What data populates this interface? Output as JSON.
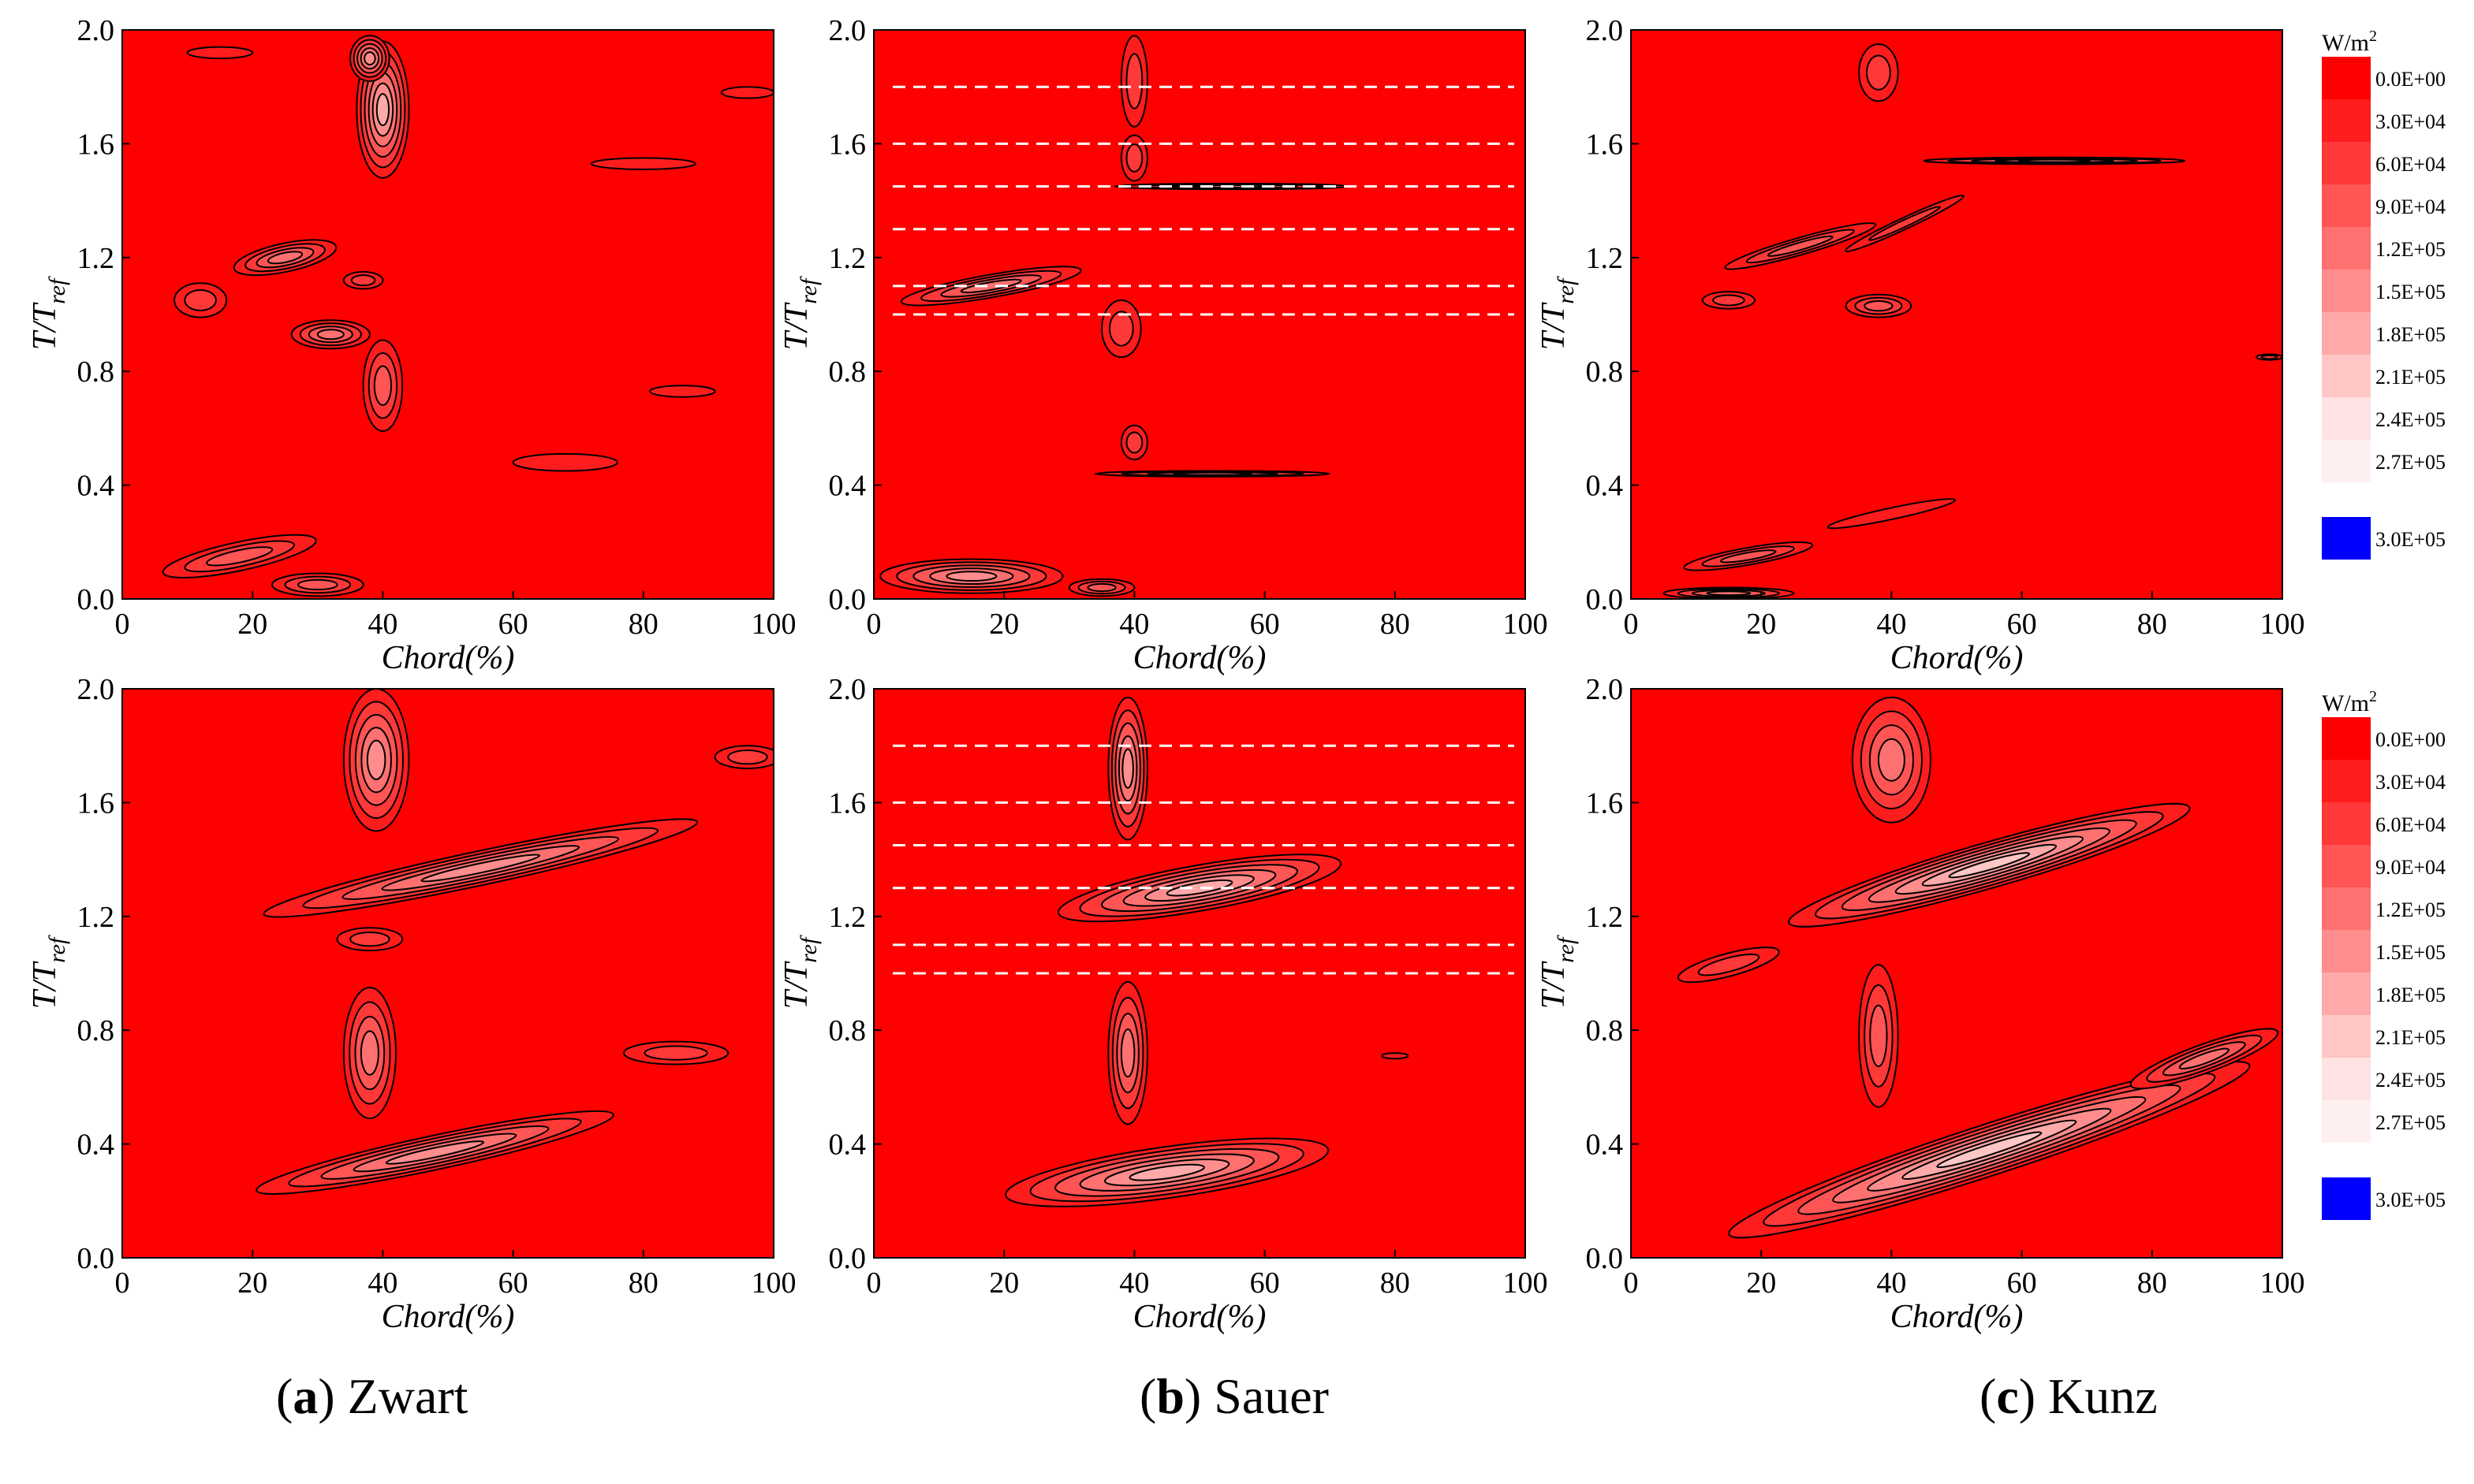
{
  "colors": {
    "background": "#ff0000",
    "contour_line": "#000000",
    "guide_line": "#ffffff",
    "cap_color": "#0000ff",
    "levels": [
      "#ff0000",
      "#ff1c1c",
      "#ff3838",
      "#ff5555",
      "#ff7171",
      "#ff8d8d",
      "#ffaaaa",
      "#ffc6c6",
      "#ffe2e2",
      "#fff0f0"
    ]
  },
  "captions": [
    {
      "letter": "a",
      "name": "Zwart"
    },
    {
      "letter": "b",
      "name": "Sauer"
    },
    {
      "letter": "c",
      "name": "Kunz"
    }
  ],
  "colorbar": {
    "unit": "W/m",
    "unit_sup": "2",
    "labels": [
      "0.0E+00",
      "3.0E+04",
      "6.0E+04",
      "9.0E+04",
      "1.2E+05",
      "1.5E+05",
      "1.8E+05",
      "2.1E+05",
      "2.4E+05",
      "2.7E+05",
      "3.0E+05"
    ]
  },
  "chart_data": [
    {
      "id": "a-top",
      "type": "heatmap",
      "model": "Zwart",
      "xlabel": "Chord(%)",
      "ylabel": "T/T",
      "ylabel_sub": "ref",
      "xlim": [
        0,
        100
      ],
      "ylim": [
        0.0,
        2.0
      ],
      "x_ticks": [
        "0",
        "20",
        "40",
        "60",
        "80",
        "100"
      ],
      "y_ticks": [
        "0.0",
        "0.4",
        "0.8",
        "1.2",
        "1.6",
        "2.0"
      ],
      "guide_lines": [],
      "blobs": [
        {
          "x": 40,
          "y": 1.72,
          "rx": 4,
          "ry": 0.24,
          "rot": 0,
          "peak": 6
        },
        {
          "x": 38,
          "y": 1.9,
          "rx": 3,
          "ry": 0.08,
          "rot": 0,
          "peak": 5
        },
        {
          "x": 25,
          "y": 1.2,
          "rx": 8,
          "ry": 0.05,
          "rot": -12,
          "peak": 4
        },
        {
          "x": 32,
          "y": 0.93,
          "rx": 6,
          "ry": 0.05,
          "rot": 0,
          "peak": 4
        },
        {
          "x": 40,
          "y": 0.75,
          "rx": 3,
          "ry": 0.16,
          "rot": 0,
          "peak": 3
        },
        {
          "x": 12,
          "y": 1.05,
          "rx": 4,
          "ry": 0.06,
          "rot": 0,
          "peak": 2
        },
        {
          "x": 37,
          "y": 1.12,
          "rx": 3,
          "ry": 0.03,
          "rot": 0,
          "peak": 2
        },
        {
          "x": 68,
          "y": 0.48,
          "rx": 8,
          "ry": 0.03,
          "rot": 0,
          "peak": 1
        },
        {
          "x": 80,
          "y": 1.53,
          "rx": 8,
          "ry": 0.02,
          "rot": 0,
          "peak": 1
        },
        {
          "x": 86,
          "y": 0.73,
          "rx": 5,
          "ry": 0.02,
          "rot": 0,
          "peak": 1
        },
        {
          "x": 96,
          "y": 1.78,
          "rx": 4,
          "ry": 0.02,
          "rot": 0,
          "peak": 1
        },
        {
          "x": 18,
          "y": 0.15,
          "rx": 12,
          "ry": 0.05,
          "rot": -12,
          "peak": 3
        },
        {
          "x": 30,
          "y": 0.05,
          "rx": 7,
          "ry": 0.04,
          "rot": 0,
          "peak": 3
        },
        {
          "x": 15,
          "y": 1.92,
          "rx": 5,
          "ry": 0.02,
          "rot": 0,
          "peak": 1
        }
      ]
    },
    {
      "id": "b-top",
      "type": "heatmap",
      "model": "Sauer",
      "xlabel": "Chord(%)",
      "ylabel": "T/T",
      "ylabel_sub": "ref",
      "xlim": [
        0,
        100
      ],
      "ylim": [
        0.0,
        2.0
      ],
      "x_ticks": [
        "0",
        "20",
        "40",
        "60",
        "80",
        "100"
      ],
      "y_ticks": [
        "0.0",
        "0.4",
        "0.8",
        "1.2",
        "1.6",
        "2.0"
      ],
      "guide_lines": [
        1.8,
        1.6,
        1.45,
        1.3,
        1.1,
        1.0
      ],
      "blobs": [
        {
          "x": 40,
          "y": 1.82,
          "rx": 2,
          "ry": 0.16,
          "rot": 0,
          "peak": 2
        },
        {
          "x": 40,
          "y": 1.55,
          "rx": 2,
          "ry": 0.08,
          "rot": 0,
          "peak": 2
        },
        {
          "x": 55,
          "y": 1.45,
          "rx": 18,
          "ry": 0.01,
          "rot": 0,
          "peak": 4
        },
        {
          "x": 18,
          "y": 1.1,
          "rx": 14,
          "ry": 0.04,
          "rot": -10,
          "peak": 4
        },
        {
          "x": 38,
          "y": 0.95,
          "rx": 3,
          "ry": 0.1,
          "rot": 0,
          "peak": 2
        },
        {
          "x": 40,
          "y": 0.55,
          "rx": 2,
          "ry": 0.06,
          "rot": 0,
          "peak": 2
        },
        {
          "x": 52,
          "y": 0.44,
          "rx": 18,
          "ry": 0.01,
          "rot": 0,
          "peak": 4
        },
        {
          "x": 15,
          "y": 0.08,
          "rx": 14,
          "ry": 0.06,
          "rot": 0,
          "peak": 5
        },
        {
          "x": 35,
          "y": 0.04,
          "rx": 5,
          "ry": 0.03,
          "rot": 0,
          "peak": 3
        }
      ]
    },
    {
      "id": "c-top",
      "type": "heatmap",
      "model": "Kunz",
      "xlabel": "Chord(%)",
      "ylabel": "T/T",
      "ylabel_sub": "ref",
      "xlim": [
        0,
        100
      ],
      "ylim": [
        0.0,
        2.0
      ],
      "x_ticks": [
        "0",
        "20",
        "40",
        "60",
        "80",
        "100"
      ],
      "y_ticks": [
        "0.0",
        "0.4",
        "0.8",
        "1.2",
        "1.6",
        "2.0"
      ],
      "guide_lines": [],
      "blobs": [
        {
          "x": 65,
          "y": 1.54,
          "rx": 20,
          "ry": 0.012,
          "rot": 0,
          "peak": 5
        },
        {
          "x": 38,
          "y": 1.85,
          "rx": 3,
          "ry": 0.1,
          "rot": 0,
          "peak": 2
        },
        {
          "x": 26,
          "y": 1.24,
          "rx": 12,
          "ry": 0.03,
          "rot": -16,
          "peak": 3
        },
        {
          "x": 38,
          "y": 1.03,
          "rx": 5,
          "ry": 0.04,
          "rot": 0,
          "peak": 3
        },
        {
          "x": 42,
          "y": 1.32,
          "rx": 10,
          "ry": 0.02,
          "rot": -25,
          "peak": 2
        },
        {
          "x": 15,
          "y": 1.05,
          "rx": 4,
          "ry": 0.03,
          "rot": 0,
          "peak": 2
        },
        {
          "x": 98,
          "y": 0.85,
          "rx": 2,
          "ry": 0.01,
          "rot": 0,
          "peak": 2
        },
        {
          "x": 18,
          "y": 0.15,
          "rx": 10,
          "ry": 0.03,
          "rot": -10,
          "peak": 3
        },
        {
          "x": 15,
          "y": 0.02,
          "rx": 10,
          "ry": 0.02,
          "rot": 0,
          "peak": 4
        },
        {
          "x": 40,
          "y": 0.3,
          "rx": 10,
          "ry": 0.02,
          "rot": -12,
          "peak": 1
        }
      ]
    },
    {
      "id": "a-bottom",
      "type": "heatmap",
      "model": "Zwart",
      "xlabel": "Chord(%)",
      "ylabel": "T/T",
      "ylabel_sub": "ref",
      "xlim": [
        0,
        100
      ],
      "ylim": [
        0.0,
        2.0
      ],
      "x_ticks": [
        "0",
        "20",
        "40",
        "60",
        "80",
        "100"
      ],
      "y_ticks": [
        "0.0",
        "0.4",
        "0.8",
        "1.2",
        "1.6",
        "2.0"
      ],
      "guide_lines": [],
      "blobs": [
        {
          "x": 39,
          "y": 1.75,
          "rx": 5,
          "ry": 0.25,
          "rot": 0,
          "peak": 5
        },
        {
          "x": 55,
          "y": 1.37,
          "rx": 34,
          "ry": 0.06,
          "rot": -12,
          "peak": 5
        },
        {
          "x": 38,
          "y": 0.72,
          "rx": 4,
          "ry": 0.23,
          "rot": 0,
          "peak": 4
        },
        {
          "x": 48,
          "y": 0.37,
          "rx": 28,
          "ry": 0.06,
          "rot": -12,
          "peak": 5
        },
        {
          "x": 85,
          "y": 0.72,
          "rx": 8,
          "ry": 0.04,
          "rot": 0,
          "peak": 2
        },
        {
          "x": 96,
          "y": 1.76,
          "rx": 5,
          "ry": 0.04,
          "rot": 0,
          "peak": 2
        },
        {
          "x": 38,
          "y": 1.12,
          "rx": 5,
          "ry": 0.04,
          "rot": 0,
          "peak": 2
        }
      ]
    },
    {
      "id": "b-bottom",
      "type": "heatmap",
      "model": "Sauer",
      "xlabel": "Chord(%)",
      "ylabel": "T/T",
      "ylabel_sub": "ref",
      "xlim": [
        0,
        100
      ],
      "ylim": [
        0.0,
        2.0
      ],
      "x_ticks": [
        "0",
        "20",
        "40",
        "60",
        "80",
        "100"
      ],
      "y_ticks": [
        "0.0",
        "0.4",
        "0.8",
        "1.2",
        "1.6",
        "2.0"
      ],
      "guide_lines": [
        1.8,
        1.6,
        1.45,
        1.3,
        1.1,
        1.0
      ],
      "blobs": [
        {
          "x": 39,
          "y": 1.72,
          "rx": 3,
          "ry": 0.25,
          "rot": 0,
          "peak": 5
        },
        {
          "x": 50,
          "y": 1.3,
          "rx": 22,
          "ry": 0.08,
          "rot": -10,
          "peak": 6
        },
        {
          "x": 39,
          "y": 0.72,
          "rx": 3,
          "ry": 0.25,
          "rot": 0,
          "peak": 4
        },
        {
          "x": 45,
          "y": 0.3,
          "rx": 25,
          "ry": 0.09,
          "rot": -8,
          "peak": 6
        },
        {
          "x": 80,
          "y": 0.71,
          "rx": 2,
          "ry": 0.01,
          "rot": 0,
          "peak": 1
        }
      ]
    },
    {
      "id": "c-bottom",
      "type": "heatmap",
      "model": "Kunz",
      "xlabel": "Chord(%)",
      "ylabel": "T/T",
      "ylabel_sub": "ref",
      "xlim": [
        0,
        100
      ],
      "ylim": [
        0.0,
        2.0
      ],
      "x_ticks": [
        "0",
        "20",
        "40",
        "60",
        "80",
        "100"
      ],
      "y_ticks": [
        "0.0",
        "0.4",
        "0.8",
        "1.2",
        "1.6",
        "2.0"
      ],
      "guide_lines": [],
      "blobs": [
        {
          "x": 40,
          "y": 1.75,
          "rx": 6,
          "ry": 0.22,
          "rot": 0,
          "peak": 4
        },
        {
          "x": 55,
          "y": 1.38,
          "rx": 32,
          "ry": 0.08,
          "rot": -16,
          "peak": 7
        },
        {
          "x": 38,
          "y": 0.78,
          "rx": 3,
          "ry": 0.25,
          "rot": 0,
          "peak": 3
        },
        {
          "x": 55,
          "y": 0.38,
          "rx": 42,
          "ry": 0.09,
          "rot": -18,
          "peak": 7
        },
        {
          "x": 15,
          "y": 1.03,
          "rx": 8,
          "ry": 0.04,
          "rot": -15,
          "peak": 2
        },
        {
          "x": 88,
          "y": 0.7,
          "rx": 12,
          "ry": 0.05,
          "rot": -20,
          "peak": 4
        }
      ]
    }
  ]
}
